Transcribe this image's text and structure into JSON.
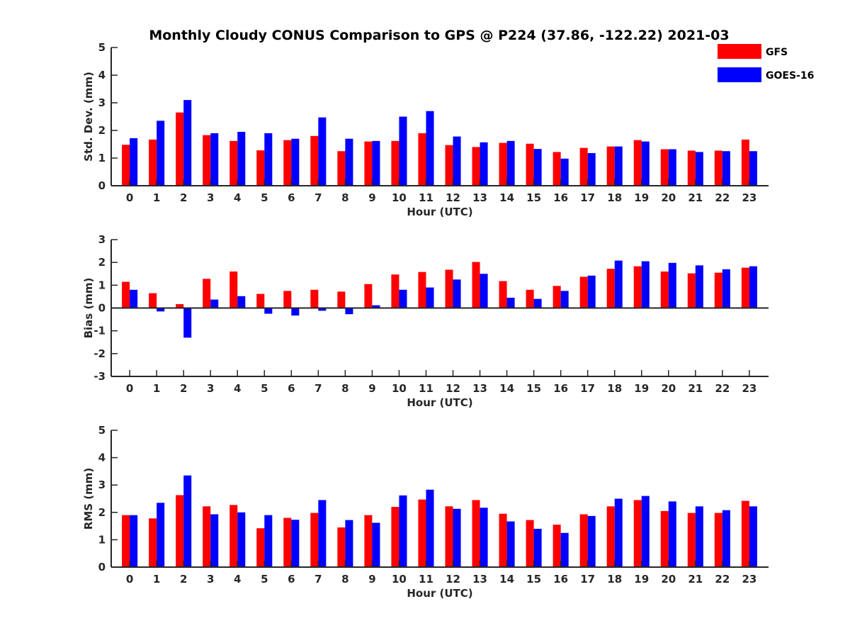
{
  "chart_data": {
    "type": "bar",
    "title": "Monthly Cloudy CONUS Comparison to GPS @ P224 (37.86, -122.22) 2021-03",
    "legend": {
      "placement": "top-right",
      "entries": [
        {
          "name": "GFS",
          "color": "#ff0000"
        },
        {
          "name": "GOES-16",
          "color": "#0000ff"
        }
      ]
    },
    "categories": [
      "0",
      "1",
      "2",
      "3",
      "4",
      "5",
      "6",
      "7",
      "8",
      "9",
      "10",
      "11",
      "12",
      "13",
      "14",
      "15",
      "16",
      "17",
      "18",
      "19",
      "20",
      "21",
      "22",
      "23"
    ],
    "panels": [
      {
        "ylabel": "Std. Dev. (mm)",
        "xlabel": "Hour (UTC)",
        "ylim": [
          0,
          5
        ],
        "yticks": [
          "0",
          "1",
          "2",
          "3",
          "4",
          "5"
        ],
        "series": [
          {
            "name": "GFS",
            "color": "#ff0000",
            "values": [
              1.48,
              1.67,
              2.65,
              1.83,
              1.62,
              1.28,
              1.65,
              1.8,
              1.25,
              1.6,
              1.62,
              1.9,
              1.47,
              1.4,
              1.55,
              1.52,
              1.22,
              1.37,
              1.42,
              1.65,
              1.32,
              1.27,
              1.27,
              1.67
            ]
          },
          {
            "name": "GOES-16",
            "color": "#0000ff",
            "values": [
              1.72,
              2.35,
              3.1,
              1.9,
              1.95,
              1.9,
              1.7,
              2.47,
              1.7,
              1.62,
              2.5,
              2.7,
              1.78,
              1.57,
              1.62,
              1.33,
              0.98,
              1.18,
              1.42,
              1.6,
              1.32,
              1.22,
              1.25,
              1.25
            ]
          }
        ]
      },
      {
        "ylabel": "Bias (mm)",
        "xlabel": "Hour (UTC)",
        "ylim": [
          -3,
          3
        ],
        "yticks": [
          "-3",
          "-2",
          "-1",
          "0",
          "1",
          "2",
          "3"
        ],
        "series": [
          {
            "name": "GFS",
            "color": "#ff0000",
            "values": [
              1.15,
              0.65,
              0.17,
              1.28,
              1.6,
              0.62,
              0.75,
              0.8,
              0.72,
              1.05,
              1.47,
              1.58,
              1.68,
              2.02,
              1.18,
              0.8,
              0.97,
              1.37,
              1.72,
              1.83,
              1.6,
              1.52,
              1.55,
              1.77
            ]
          },
          {
            "name": "GOES-16",
            "color": "#0000ff",
            "values": [
              0.8,
              -0.15,
              -1.3,
              0.37,
              0.52,
              -0.25,
              -0.33,
              -0.12,
              -0.27,
              0.12,
              0.8,
              0.9,
              1.25,
              1.5,
              0.45,
              0.4,
              0.75,
              1.42,
              2.08,
              2.05,
              1.98,
              1.87,
              1.7,
              1.83
            ]
          }
        ]
      },
      {
        "ylabel": "RMS (mm)",
        "xlabel": "Hour (UTC)",
        "ylim": [
          0,
          5
        ],
        "yticks": [
          "0",
          "1",
          "2",
          "3",
          "4",
          "5"
        ],
        "series": [
          {
            "name": "GFS",
            "color": "#ff0000",
            "values": [
              1.9,
              1.78,
              2.63,
              2.22,
              2.27,
              1.42,
              1.8,
              1.98,
              1.45,
              1.9,
              2.2,
              2.47,
              2.22,
              2.45,
              1.95,
              1.72,
              1.55,
              1.93,
              2.22,
              2.45,
              2.05,
              1.98,
              1.98,
              2.42
            ]
          },
          {
            "name": "GOES-16",
            "color": "#0000ff",
            "values": [
              1.9,
              2.35,
              3.35,
              1.93,
              2.0,
              1.9,
              1.73,
              2.45,
              1.72,
              1.62,
              2.62,
              2.83,
              2.13,
              2.17,
              1.67,
              1.4,
              1.25,
              1.87,
              2.5,
              2.6,
              2.4,
              2.22,
              2.08,
              2.22
            ]
          }
        ]
      }
    ]
  }
}
